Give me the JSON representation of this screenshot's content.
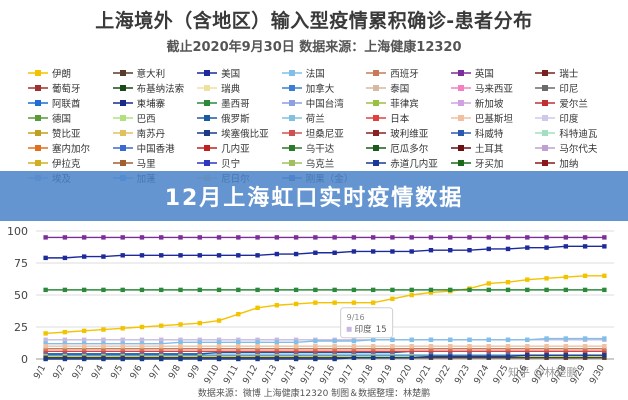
{
  "title": "上海境外（含地区）输入型疫情累积确诊-患者分布",
  "subtitle": "截止2020年9月30日 数据来源：上海健康12320",
  "banner": "12月上海虹口实时疫情数据",
  "footer": "数据来源：微博 上海健康12320 制图＆数据整理：林楚鹏",
  "watermark": "知乎 @林楚鹏",
  "tooltip": {
    "label": "印度",
    "value": "15"
  },
  "legend_items": [
    {
      "name": "伊朗",
      "color": "#f3c300"
    },
    {
      "name": "意大利",
      "color": "#5a3a2a"
    },
    {
      "name": "美国",
      "color": "#1c2a9c"
    },
    {
      "name": "法国",
      "color": "#7fbfe8"
    },
    {
      "name": "西班牙",
      "color": "#c77a5a"
    },
    {
      "name": "英国",
      "color": "#7a2f9a"
    },
    {
      "name": "瑞士",
      "color": "#7a1f1f"
    },
    {
      "name": "葡萄牙",
      "color": "#a03030"
    },
    {
      "name": "布基纳法索",
      "color": "#1a4a1a"
    },
    {
      "name": "瑞典",
      "color": "#f0e0a0"
    },
    {
      "name": "加拿大",
      "color": "#3a7fd0"
    },
    {
      "name": "泰国",
      "color": "#d8b8a0"
    },
    {
      "name": "马来西亚",
      "color": "#f080c0"
    },
    {
      "name": "印尼",
      "color": "#6a6a6a"
    },
    {
      "name": "阿联酋",
      "color": "#1c6fd0"
    },
    {
      "name": "柬埔寨",
      "color": "#1a2a8a"
    },
    {
      "name": "墨西哥",
      "color": "#2a8a3a"
    },
    {
      "name": "中国台湾",
      "color": "#8aa0e0"
    },
    {
      "name": "菲律宾",
      "color": "#9ac040"
    },
    {
      "name": "新加坡",
      "color": "#d0a0e0"
    },
    {
      "name": "爱尔兰",
      "color": "#c03030"
    },
    {
      "name": "德国",
      "color": "#5a9a3a"
    },
    {
      "name": "巴西",
      "color": "#b0e080"
    },
    {
      "name": "俄罗斯",
      "color": "#1a5aa0"
    },
    {
      "name": "荷兰",
      "color": "#80c0e0"
    },
    {
      "name": "日本",
      "color": "#e04040"
    },
    {
      "name": "巴基斯坦",
      "color": "#f0c0a0"
    },
    {
      "name": "印度",
      "color": "#d0c8e8"
    },
    {
      "name": "赞比亚",
      "color": "#c0a020"
    },
    {
      "name": "南苏丹",
      "color": "#e0c060"
    },
    {
      "name": "埃塞俄比亚",
      "color": "#1a3a8a"
    },
    {
      "name": "坦桑尼亚",
      "color": "#d05050"
    },
    {
      "name": "玻利维亚",
      "color": "#8a2020"
    },
    {
      "name": "科威特",
      "color": "#2a5ab0"
    },
    {
      "name": "科特迪瓦",
      "color": "#a0e0c0"
    },
    {
      "name": "塞内加尔",
      "color": "#e07020"
    },
    {
      "name": "中国香港",
      "color": "#3a6ad0"
    },
    {
      "name": "几内亚",
      "color": "#c02020"
    },
    {
      "name": "乌干达",
      "color": "#2a7a2a"
    },
    {
      "name": "厄瓜多尔",
      "color": "#1a5a1a"
    },
    {
      "name": "土耳其",
      "color": "#6a1010"
    },
    {
      "name": "马尔代夫",
      "color": "#c0a0d0"
    },
    {
      "name": "伊拉克",
      "color": "#d0b020"
    },
    {
      "name": "马里",
      "color": "#a06030"
    },
    {
      "name": "贝宁",
      "color": "#2a3ac0"
    },
    {
      "name": "乌克兰",
      "color": "#a0c060"
    },
    {
      "name": "赤道几内亚",
      "color": "#1a3a9a"
    },
    {
      "name": "牙买加",
      "color": "#1a6a1a"
    },
    {
      "name": "加纳",
      "color": "#8a1a1a"
    },
    {
      "name": "埃及",
      "color": "#b0c8e8"
    },
    {
      "name": "加蓬",
      "color": "#80c0ff"
    },
    {
      "name": "尼日尔",
      "color": "#f0d8a0"
    },
    {
      "name": "刚果（金）",
      "color": "#6a8ad0"
    }
  ],
  "chart_data": {
    "type": "line",
    "title": "上海境外（含地区）输入型疫情累积确诊-患者分布",
    "subtitle": "截止2020年9月30日 数据来源：上海健康12320",
    "xlabel": "",
    "ylabel": "",
    "ylim": [
      0,
      100
    ],
    "yticks": [
      0,
      25,
      50,
      75,
      100
    ],
    "grid": true,
    "legend_position": "top",
    "x": [
      "9/1",
      "9/2",
      "9/3",
      "9/4",
      "9/5",
      "9/6",
      "9/7",
      "9/8",
      "9/9",
      "9/10",
      "9/11",
      "9/12",
      "9/13",
      "9/14",
      "9/15",
      "9/16",
      "9/17",
      "9/18",
      "9/19",
      "9/20",
      "9/21",
      "9/22",
      "9/23",
      "9/24",
      "9/25",
      "9/26",
      "9/27",
      "9/28",
      "9/29",
      "9/30"
    ],
    "series": [
      {
        "name": "英国",
        "color": "#7a2f9a",
        "values": [
          95,
          95,
          95,
          95,
          95,
          95,
          95,
          95,
          95,
          95,
          95,
          95,
          95,
          95,
          95,
          95,
          95,
          95,
          95,
          95,
          95,
          95,
          95,
          95,
          95,
          95,
          95,
          95,
          95,
          95
        ]
      },
      {
        "name": "美国",
        "color": "#1c2a9c",
        "values": [
          79,
          79,
          80,
          80,
          81,
          81,
          81,
          81,
          81,
          81,
          81,
          81,
          82,
          82,
          83,
          83,
          84,
          84,
          84,
          84,
          85,
          85,
          85,
          86,
          86,
          87,
          87,
          88,
          88,
          88
        ]
      },
      {
        "name": "伊朗",
        "color": "#f3c300",
        "values": [
          20,
          21,
          22,
          23,
          24,
          25,
          26,
          27,
          28,
          30,
          35,
          40,
          42,
          43,
          44,
          44,
          44,
          44,
          47,
          50,
          52,
          53,
          55,
          59,
          60,
          62,
          63,
          64,
          65,
          65
        ]
      },
      {
        "name": "菲律宾",
        "color": "#2a8a3a",
        "values": [
          54,
          54,
          54,
          54,
          54,
          54,
          54,
          54,
          54,
          54,
          54,
          54,
          54,
          54,
          54,
          54,
          54,
          54,
          54,
          54,
          54,
          54,
          54,
          54,
          54,
          54,
          54,
          54,
          54,
          54
        ]
      },
      {
        "name": "印度",
        "color": "#c8b8e0",
        "values": [
          15,
          15,
          15,
          15,
          15,
          15,
          15,
          15,
          15,
          15,
          15,
          15,
          15,
          15,
          15,
          15,
          15,
          15,
          15,
          15,
          15,
          15,
          15,
          15,
          15,
          15,
          15,
          15,
          15,
          15
        ]
      },
      {
        "name": "俄罗斯",
        "color": "#1a5aa0",
        "values": [
          4,
          4,
          4,
          4,
          4,
          4,
          4,
          4,
          4,
          5,
          5,
          5,
          5,
          5,
          5,
          5,
          5,
          5,
          5,
          6,
          6,
          6,
          6,
          6,
          6,
          6,
          6,
          6,
          6,
          6
        ]
      },
      {
        "name": "法国",
        "color": "#7fbfe8",
        "values": [
          12,
          12,
          12,
          12,
          12,
          12,
          12,
          13,
          13,
          13,
          13,
          13,
          13,
          13,
          14,
          14,
          14,
          15,
          15,
          15,
          15,
          15,
          15,
          15,
          15,
          15,
          16,
          16,
          16,
          16
        ]
      },
      {
        "name": "日本",
        "color": "#e04040",
        "values": [
          6,
          6,
          6,
          6,
          6,
          6,
          6,
          6,
          6,
          6,
          6,
          6,
          6,
          6,
          6,
          6,
          6,
          6,
          6,
          6,
          6,
          6,
          6,
          6,
          6,
          6,
          6,
          6,
          6,
          6
        ]
      },
      {
        "name": "加拿大",
        "color": "#3a7fd0",
        "values": [
          3,
          3,
          3,
          3,
          3,
          3,
          3,
          3,
          3,
          3,
          3,
          3,
          3,
          3,
          3,
          3,
          3,
          3,
          3,
          3,
          3,
          3,
          3,
          3,
          3,
          3,
          3,
          3,
          3,
          3
        ]
      },
      {
        "name": "巴西",
        "color": "#b0e080",
        "values": [
          2,
          2,
          2,
          2,
          2,
          2,
          2,
          2,
          2,
          2,
          2,
          2,
          2,
          2,
          2,
          2,
          2,
          2,
          2,
          2,
          2,
          2,
          2,
          2,
          2,
          2,
          2,
          2,
          2,
          2
        ]
      },
      {
        "name": "意大利",
        "color": "#5a3a2a",
        "values": [
          1,
          1,
          1,
          1,
          1,
          1,
          1,
          1,
          1,
          1,
          1,
          1,
          1,
          1,
          1,
          1,
          1,
          1,
          1,
          1,
          1,
          1,
          1,
          1,
          1,
          1,
          1,
          1,
          1,
          1
        ]
      },
      {
        "name": "西班牙",
        "color": "#c77a5a",
        "values": [
          8,
          8,
          8,
          8,
          8,
          8,
          8,
          8,
          8,
          8,
          8,
          8,
          8,
          8,
          8,
          8,
          8,
          8,
          8,
          8,
          8,
          8,
          8,
          8,
          8,
          8,
          8,
          8,
          8,
          8
        ]
      },
      {
        "name": "巴基斯坦",
        "color": "#f0c0a0",
        "values": [
          10,
          10,
          10,
          10,
          10,
          10,
          10,
          10,
          10,
          10,
          10,
          10,
          10,
          10,
          10,
          10,
          10,
          10,
          10,
          10,
          10,
          10,
          10,
          10,
          10,
          10,
          10,
          10,
          10,
          10
        ]
      },
      {
        "name": "埃塞俄比亚",
        "color": "#1a3a8a",
        "values": [
          0,
          0,
          0,
          0,
          0,
          0,
          0,
          0,
          0,
          0,
          0,
          0,
          0,
          0,
          0,
          0,
          1,
          1,
          1,
          1,
          2,
          2,
          2,
          2,
          2,
          3,
          3,
          3,
          3,
          3
        ]
      }
    ]
  }
}
